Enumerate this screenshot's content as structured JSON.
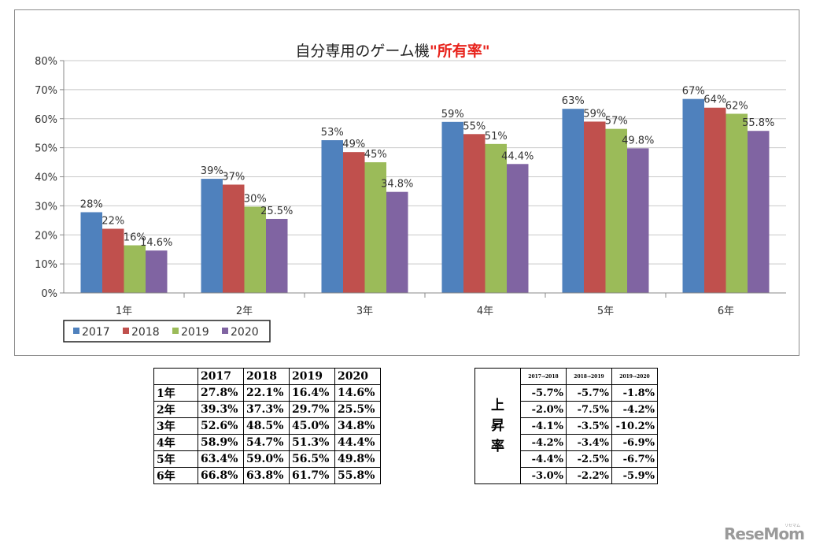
{
  "chart_data": {
    "type": "bar",
    "title_main": "自分専用のゲーム機",
    "title_highlight": "\"所有率\"",
    "categories": [
      "1年",
      "2年",
      "3年",
      "4年",
      "5年",
      "6年"
    ],
    "ylim": [
      0,
      80
    ],
    "y_ticks": [
      "0%",
      "10%",
      "20%",
      "30%",
      "40%",
      "50%",
      "60%",
      "70%",
      "80%"
    ],
    "grid": true,
    "legend_position": "bottom-left",
    "series": [
      {
        "name": "2017",
        "color": "#4f81bd",
        "values": [
          27.8,
          39.3,
          52.6,
          58.9,
          63.4,
          66.8
        ],
        "labels": [
          "28%",
          "39%",
          "53%",
          "59%",
          "63%",
          "67%"
        ]
      },
      {
        "name": "2018",
        "color": "#c0504d",
        "values": [
          22.1,
          37.3,
          48.5,
          54.7,
          59.0,
          63.8
        ],
        "labels": [
          "22%",
          "37%",
          "49%",
          "55%",
          "59%",
          "64%"
        ]
      },
      {
        "name": "2019",
        "color": "#9bbb59",
        "values": [
          16.4,
          29.7,
          45.0,
          51.3,
          56.5,
          61.7
        ],
        "labels": [
          "16%",
          "30%",
          "45%",
          "51%",
          "57%",
          "62%"
        ]
      },
      {
        "name": "2020",
        "color": "#8064a2",
        "values": [
          14.6,
          25.5,
          34.8,
          44.4,
          49.8,
          55.8
        ],
        "labels": [
          "14.6%",
          "25.5%",
          "34.8%",
          "44.4%",
          "49.8%",
          "55.8%"
        ]
      }
    ]
  },
  "table": {
    "headers": [
      "",
      "2017",
      "2018",
      "2019",
      "2020"
    ],
    "rows": [
      [
        "1年",
        "27.8%",
        "22.1%",
        "16.4%",
        "14.6%"
      ],
      [
        "2年",
        "39.3%",
        "37.3%",
        "29.7%",
        "25.5%"
      ],
      [
        "3年",
        "52.6%",
        "48.5%",
        "45.0%",
        "34.8%"
      ],
      [
        "4年",
        "58.9%",
        "54.7%",
        "51.3%",
        "44.4%"
      ],
      [
        "5年",
        "63.4%",
        "59.0%",
        "56.5%",
        "49.8%"
      ],
      [
        "6年",
        "66.8%",
        "63.8%",
        "61.7%",
        "55.8%"
      ]
    ]
  },
  "change_table": {
    "label_chars": [
      "上",
      "昇",
      "率"
    ],
    "headers": [
      "2017→2018",
      "2018→2019",
      "2019→2020"
    ],
    "rows": [
      [
        "-5.7%",
        "-5.7%",
        "-1.8%"
      ],
      [
        "-2.0%",
        "-7.5%",
        "-4.2%"
      ],
      [
        "-4.1%",
        "-3.5%",
        "-10.2%"
      ],
      [
        "-4.2%",
        "-3.4%",
        "-6.9%"
      ],
      [
        "-4.4%",
        "-2.5%",
        "-6.7%"
      ],
      [
        "-3.0%",
        "-2.2%",
        "-5.9%"
      ]
    ]
  },
  "brand": {
    "name": "ReseMom",
    "kana": "リセマム"
  }
}
